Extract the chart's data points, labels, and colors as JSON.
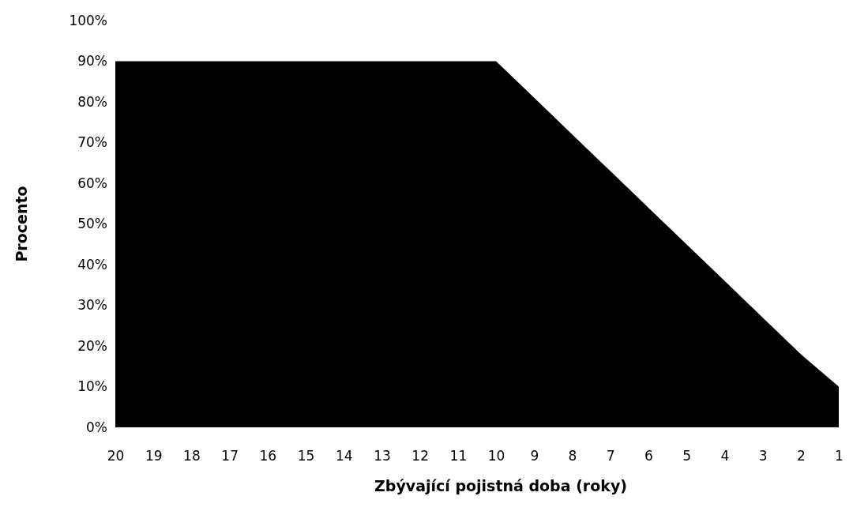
{
  "chart_data": {
    "type": "area",
    "xlabel": "Zbývající pojistná doba (roky)",
    "ylabel": "Procento",
    "categories": [
      "20",
      "19",
      "18",
      "17",
      "16",
      "15",
      "14",
      "13",
      "12",
      "11",
      "10",
      "9",
      "8",
      "7",
      "6",
      "5",
      "4",
      "3",
      "2",
      "1"
    ],
    "series": [
      {
        "color": "#000000",
        "values": [
          90,
          90,
          90,
          90,
          90,
          90,
          90,
          90,
          90,
          90,
          90,
          81,
          72,
          63,
          54,
          45,
          36,
          27,
          18,
          10
        ]
      }
    ],
    "ylim": [
      0,
      100
    ],
    "yticks": [
      {
        "value": 0,
        "label": "0%"
      },
      {
        "value": 10,
        "label": "10%"
      },
      {
        "value": 20,
        "label": "20%"
      },
      {
        "value": 30,
        "label": "30%"
      },
      {
        "value": 40,
        "label": "40%"
      },
      {
        "value": 50,
        "label": "50%"
      },
      {
        "value": 60,
        "label": "60%"
      },
      {
        "value": 70,
        "label": "70%"
      },
      {
        "value": 80,
        "label": "80%"
      },
      {
        "value": 90,
        "label": "90%"
      },
      {
        "value": 100,
        "label": "100%"
      }
    ],
    "grid": false
  }
}
